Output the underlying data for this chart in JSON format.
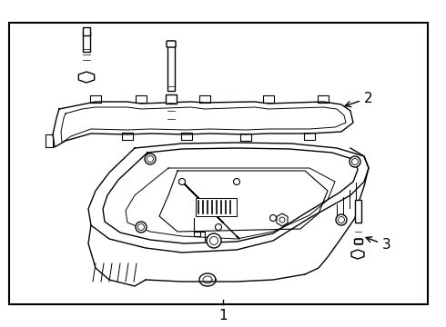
{
  "background_color": "#ffffff",
  "line_color": "#000000",
  "label_1": "1",
  "label_2": "2",
  "label_3": "3",
  "figsize": [
    4.9,
    3.6
  ],
  "dpi": 100
}
